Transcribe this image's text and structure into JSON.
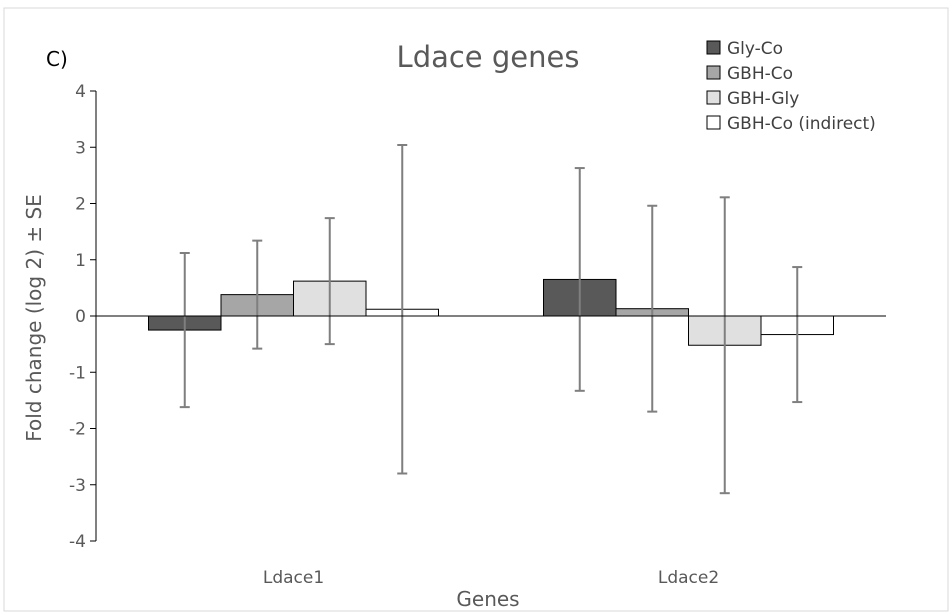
{
  "panel_label": "C)",
  "chart_data": {
    "type": "bar",
    "title": "Ldace genes",
    "xlabel": "Genes",
    "ylabel": "Fold change (log 2) ± SE",
    "ylim": [
      -4,
      4
    ],
    "yticks": [
      4,
      3,
      2,
      1,
      0,
      -1,
      -2,
      -3,
      -4
    ],
    "categories": [
      "Ldace1",
      "Ldace2"
    ],
    "legend_position": "top-right",
    "grid": false,
    "series": [
      {
        "name": "Gly-Co",
        "color": "#595959",
        "values": [
          -0.25,
          0.65
        ],
        "se": [
          1.37,
          1.98
        ]
      },
      {
        "name": "GBH-Co",
        "color": "#a6a6a6",
        "values": [
          0.38,
          0.13
        ],
        "se": [
          0.96,
          1.83
        ]
      },
      {
        "name": "GBH-Gly",
        "color": "#e0e0e0",
        "values": [
          0.62,
          -0.52
        ],
        "se": [
          1.12,
          2.63
        ]
      },
      {
        "name": "GBH-Co (indirect)",
        "color": "#ffffff",
        "values": [
          0.12,
          -0.33
        ],
        "se": [
          2.92,
          1.2
        ]
      }
    ],
    "errorbar_color": "#7f7f7f"
  }
}
